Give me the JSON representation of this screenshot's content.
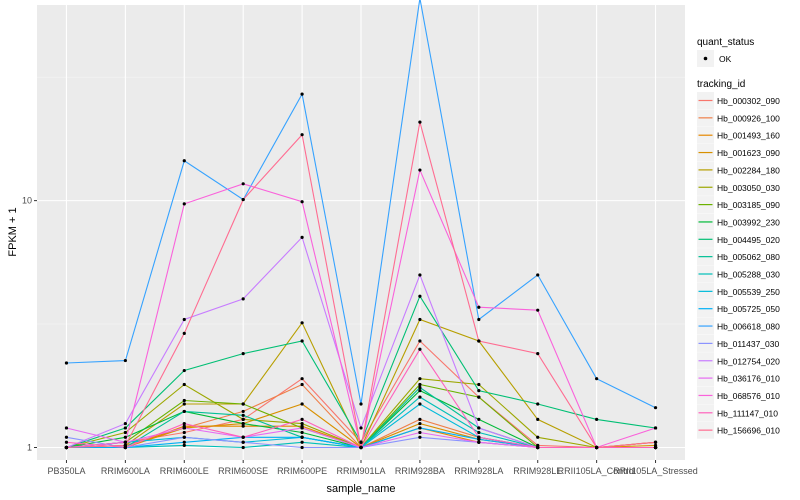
{
  "chart_data": {
    "type": "line",
    "xlabel": "sample_name",
    "ylabel": "FPKM + 1",
    "y_scale": "log10",
    "ylim": [
      0.89,
      62
    ],
    "y_ticks": [
      1,
      10
    ],
    "y_tick_labels": [
      "1",
      "10"
    ],
    "grid": true,
    "legend_position": "right",
    "categories": [
      "PB350LA",
      "RRIM600LA",
      "RRIM600LE",
      "RRIM600SE",
      "RRIM600PE",
      "RRIM901LA",
      "RRIM928BA",
      "RRIM928LA",
      "RRIM928LE",
      "RRII105LA_Control",
      "RRII105LA_Stressed"
    ],
    "point_legend": {
      "title": "quant_status",
      "entries": [
        "OK"
      ]
    },
    "line_legend_title": "tracking_id",
    "series": [
      {
        "name": "Hb_000302_090",
        "color": "#F8766D",
        "values": [
          1.0,
          1.05,
          1.15,
          1.3,
          1.9,
          1.05,
          2.7,
          1.6,
          1.02,
          1.0,
          1.05
        ]
      },
      {
        "name": "Hb_000926_100",
        "color": "#EF7F49",
        "values": [
          1.0,
          1.02,
          1.2,
          1.4,
          1.8,
          1.0,
          1.3,
          1.1,
          1.0,
          1.0,
          1.0
        ]
      },
      {
        "name": "Hb_001493_160",
        "color": "#E58700",
        "values": [
          1.0,
          1.0,
          1.22,
          1.22,
          1.22,
          1.0,
          1.2,
          1.05,
          1.0,
          1.0,
          1.0
        ]
      },
      {
        "name": "Hb_001623_090",
        "color": "#D89000",
        "values": [
          1.0,
          1.0,
          1.2,
          1.25,
          1.5,
          1.0,
          1.25,
          1.08,
          1.0,
          1.0,
          1.02
        ]
      },
      {
        "name": "Hb_002284_180",
        "color": "#B79F00",
        "values": [
          1.0,
          1.02,
          1.5,
          1.5,
          3.2,
          1.0,
          3.3,
          2.7,
          1.3,
          1.0,
          1.0
        ]
      },
      {
        "name": "Hb_003050_030",
        "color": "#9CA700",
        "values": [
          1.0,
          1.15,
          1.8,
          1.3,
          1.25,
          1.0,
          1.9,
          1.8,
          1.1,
          1.0,
          1.05
        ]
      },
      {
        "name": "Hb_003185_090",
        "color": "#6BB100",
        "values": [
          1.0,
          1.05,
          1.55,
          1.5,
          1.2,
          1.0,
          1.8,
          1.6,
          1.0,
          1.0,
          1.0
        ]
      },
      {
        "name": "Hb_003992_230",
        "color": "#00BA38",
        "values": [
          1.0,
          1.1,
          1.4,
          1.25,
          1.15,
          1.0,
          1.7,
          1.3,
          1.0,
          1.0,
          1.0
        ]
      },
      {
        "name": "Hb_004495_020",
        "color": "#00BF74",
        "values": [
          1.0,
          1.2,
          2.05,
          2.4,
          2.7,
          1.05,
          4.1,
          1.7,
          1.5,
          1.3,
          1.2
        ]
      },
      {
        "name": "Hb_005062_080",
        "color": "#00C096",
        "values": [
          1.0,
          1.0,
          1.4,
          1.35,
          1.1,
          1.0,
          1.75,
          1.2,
          1.0,
          1.0,
          1.0
        ]
      },
      {
        "name": "Hb_005288_030",
        "color": "#00BFB8",
        "values": [
          1.0,
          1.0,
          1.02,
          1.0,
          1.05,
          1.0,
          1.6,
          1.15,
          1.0,
          1.0,
          1.0
        ]
      },
      {
        "name": "Hb_005539_250",
        "color": "#00BBDA",
        "values": [
          1.0,
          1.05,
          1.1,
          1.05,
          1.1,
          1.0,
          1.5,
          1.1,
          1.0,
          1.0,
          1.0
        ]
      },
      {
        "name": "Hb_005725_050",
        "color": "#00B0F6",
        "values": [
          1.0,
          1.0,
          1.05,
          1.1,
          1.1,
          1.0,
          1.2,
          1.08,
          1.0,
          1.0,
          1.0
        ]
      },
      {
        "name": "Hb_006618_080",
        "color": "#35A2FF",
        "values": [
          2.2,
          2.25,
          14.5,
          10.1,
          27,
          1.5,
          66,
          3.3,
          5.0,
          1.9,
          1.45
        ]
      },
      {
        "name": "Hb_011437_030",
        "color": "#8B93FF",
        "values": [
          1.1,
          1.0,
          1.1,
          1.05,
          1.0,
          1.0,
          1.1,
          1.05,
          1.0,
          1.0,
          1.0
        ]
      },
      {
        "name": "Hb_012754_020",
        "color": "#C77CFF",
        "values": [
          1.0,
          1.25,
          3.3,
          4.0,
          7.1,
          1.2,
          5.0,
          1.2,
          1.0,
          1.0,
          1.0
        ]
      },
      {
        "name": "Hb_036176_010",
        "color": "#E76BF3",
        "values": [
          1.2,
          1.05,
          1.2,
          1.1,
          1.2,
          1.0,
          1.15,
          1.05,
          1.0,
          1.0,
          1.0
        ]
      },
      {
        "name": "Hb_068576_010",
        "color": "#FA62DB",
        "values": [
          1.0,
          1.05,
          9.7,
          11.7,
          9.9,
          1.0,
          13.3,
          3.7,
          3.6,
          1.0,
          1.2
        ]
      },
      {
        "name": "Hb_111147_010",
        "color": "#FF62BC",
        "values": [
          1.05,
          1.0,
          1.25,
          1.1,
          1.3,
          1.0,
          2.5,
          1.1,
          1.0,
          1.0,
          1.0
        ]
      },
      {
        "name": "Hb_156696_010",
        "color": "#FF6C91",
        "values": [
          1.0,
          1.02,
          2.9,
          10.1,
          18.5,
          1.0,
          20.8,
          2.7,
          2.4,
          1.0,
          1.05
        ]
      }
    ]
  }
}
